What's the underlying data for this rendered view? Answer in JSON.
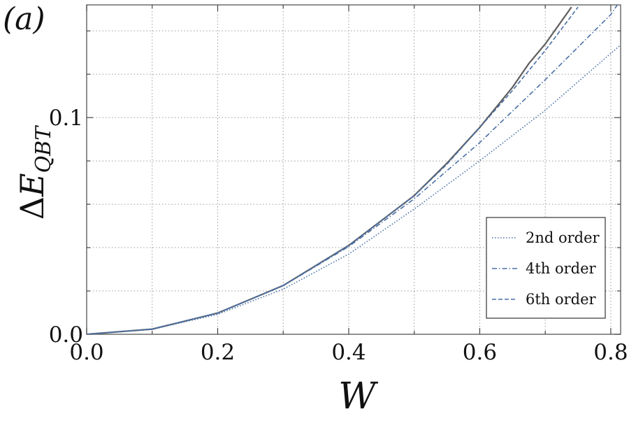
{
  "panel_label": "(a)",
  "chart_data": {
    "type": "line",
    "xlabel": "W",
    "ylabel": {
      "prefix": "Δ",
      "symbol": "E",
      "subscript": "QBT"
    },
    "xlim": [
      0.0,
      0.815
    ],
    "ylim": [
      0.0,
      0.152
    ],
    "xticks": [
      0.0,
      0.2,
      0.4,
      0.6,
      0.8
    ],
    "xtick_labels": [
      "0.0",
      "0.2",
      "0.4",
      "0.6",
      "0.8"
    ],
    "yticks": [
      0.0,
      0.1
    ],
    "ytick_labels": [
      "0.0",
      "0.1"
    ],
    "x_minor_ticks": [
      0.1,
      0.3,
      0.5,
      0.7
    ],
    "y_minor_ticks": [
      0.02,
      0.04,
      0.06,
      0.08,
      0.12,
      0.14
    ],
    "grid": true,
    "legend_position": "bottom-right",
    "series": [
      {
        "name": "",
        "style": "solid",
        "color": "#5f5f5f",
        "x": [
          0.0,
          0.1,
          0.2,
          0.3,
          0.4,
          0.5,
          0.55,
          0.6,
          0.65,
          0.675,
          0.7,
          0.74
        ],
        "y": [
          0.0,
          0.0024,
          0.0098,
          0.0225,
          0.041,
          0.064,
          0.079,
          0.0955,
          0.114,
          0.125,
          0.134,
          0.151
        ]
      },
      {
        "name": "2nd order",
        "style": "dotted",
        "color": "#4a6fa5",
        "x": [
          0.0,
          0.1,
          0.2,
          0.3,
          0.4,
          0.5,
          0.6,
          0.7,
          0.8,
          0.815
        ],
        "y": [
          0.0,
          0.0023,
          0.0092,
          0.0208,
          0.037,
          0.0578,
          0.0801,
          0.1034,
          0.1296,
          0.1335
        ]
      },
      {
        "name": "4th order",
        "style": "dashdot",
        "color": "#4a6fa5",
        "x": [
          0.0,
          0.1,
          0.2,
          0.3,
          0.4,
          0.5,
          0.6,
          0.7,
          0.8,
          0.81
        ],
        "y": [
          0.0,
          0.0024,
          0.0098,
          0.0224,
          0.0405,
          0.0625,
          0.0885,
          0.1175,
          0.1475,
          0.152
        ]
      },
      {
        "name": "6th order",
        "style": "dashed",
        "color": "#4a6fa5",
        "x": [
          0.0,
          0.1,
          0.2,
          0.3,
          0.4,
          0.5,
          0.55,
          0.6,
          0.65,
          0.7,
          0.75
        ],
        "y": [
          0.0,
          0.0024,
          0.0098,
          0.0225,
          0.041,
          0.064,
          0.0785,
          0.0955,
          0.1125,
          0.131,
          0.151
        ]
      }
    ]
  }
}
